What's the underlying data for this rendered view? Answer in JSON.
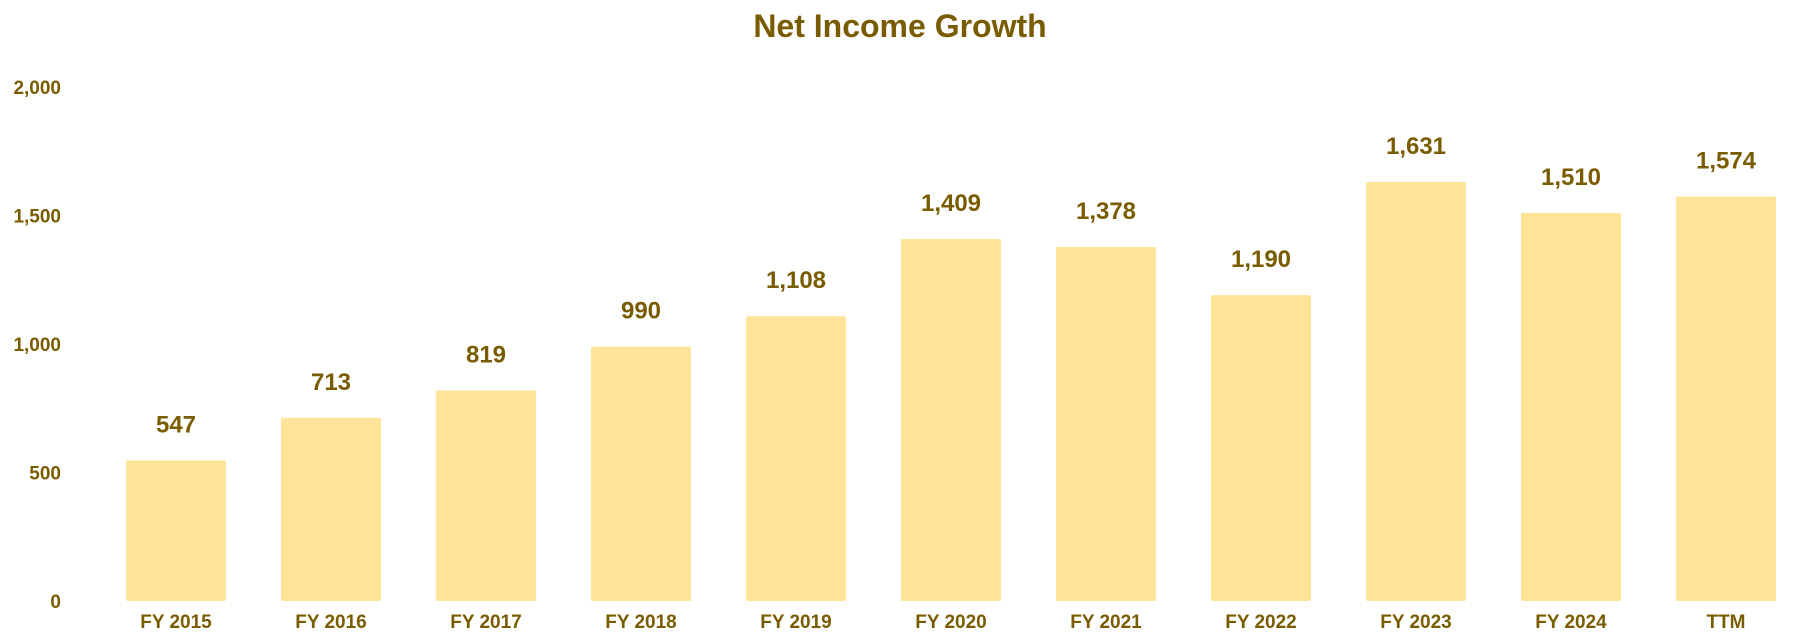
{
  "chart_data": {
    "type": "bar",
    "title": "Net Income Growth",
    "xlabel": "",
    "ylabel": "",
    "ylim": [
      0,
      2000
    ],
    "yticks": [
      0,
      500,
      1000,
      1500,
      2000
    ],
    "ytick_labels": [
      "0",
      "500",
      "1,000",
      "1,500",
      "2,000"
    ],
    "grid": false,
    "legend": "none",
    "categories": [
      "FY 2015",
      "FY 2016",
      "FY 2017",
      "FY 2018",
      "FY 2019",
      "FY 2020",
      "FY 2021",
      "FY 2022",
      "FY 2023",
      "FY 2024",
      "TTM"
    ],
    "values": [
      547,
      713,
      819,
      990,
      1108,
      1409,
      1378,
      1190,
      1631,
      1510,
      1574
    ],
    "value_labels": [
      "547",
      "713",
      "819",
      "990",
      "1,108",
      "1,409",
      "1,378",
      "1,190",
      "1,631",
      "1,510",
      "1,574"
    ]
  },
  "colors": {
    "bar": "#fde499",
    "text": "#7a5c00",
    "background": "#ffffff"
  }
}
